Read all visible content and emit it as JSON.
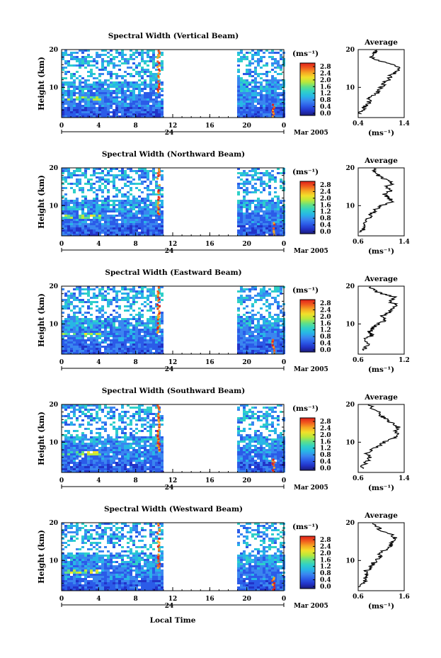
{
  "figure": {
    "x_axis_label": "Local Time",
    "date_label": "Mar 2005",
    "day_label": "24",
    "x_ticks": [
      "0",
      "4",
      "8",
      "12",
      "16",
      "20",
      "0"
    ],
    "y_axis_label": "Height (km)",
    "y_ticks": [
      "20",
      "10"
    ],
    "colorbar_unit": "(ms⁻¹)",
    "colorbar_ticks": [
      "2.8",
      "2.4",
      "2.0",
      "1.6",
      "1.2",
      "0.8",
      "0.4",
      "0.0"
    ],
    "average_title": "Average",
    "average_unit": "(ms⁻¹)"
  },
  "chart_data": [
    {
      "type": "heatmap",
      "title": "Spectral Width (Vertical Beam)",
      "xlabel": "Local Time",
      "ylabel": "Height (km)",
      "xlim": [
        0,
        24
      ],
      "ylim": [
        2,
        20
      ],
      "data_gap_hours": [
        11.2,
        18.8
      ],
      "colorbar_range": [
        0.0,
        3.0
      ],
      "average_profile": {
        "xlabel": "(ms⁻¹)",
        "x_ticks": [
          "0.4",
          "1.4"
        ],
        "xlim": [
          0.4,
          1.4
        ],
        "heights_km": [
          3,
          4,
          5,
          6,
          7,
          8,
          9,
          10,
          11,
          12,
          13,
          14,
          15,
          16,
          17,
          18,
          19,
          20
        ],
        "values": [
          0.45,
          0.5,
          0.55,
          0.65,
          0.6,
          0.75,
          0.85,
          0.9,
          0.95,
          1.05,
          1.1,
          1.2,
          1.3,
          1.15,
          0.85,
          0.7,
          0.75,
          0.8
        ]
      }
    },
    {
      "type": "heatmap",
      "title": "Spectral Width (Northward Beam)",
      "xlabel": "Local Time",
      "ylabel": "Height (km)",
      "xlim": [
        0,
        24
      ],
      "ylim": [
        2,
        20
      ],
      "data_gap_hours": [
        11.2,
        18.8
      ],
      "colorbar_range": [
        0.0,
        3.0
      ],
      "average_profile": {
        "xlabel": "(ms⁻¹)",
        "x_ticks": [
          "0.6",
          "1.4"
        ],
        "xlim": [
          0.6,
          1.4
        ],
        "heights_km": [
          3,
          4,
          5,
          6,
          7,
          8,
          9,
          10,
          11,
          12,
          13,
          14,
          15,
          16,
          17,
          18,
          19,
          20
        ],
        "values": [
          0.65,
          0.7,
          0.75,
          0.7,
          0.8,
          0.85,
          0.9,
          1.0,
          1.2,
          1.15,
          1.05,
          1.15,
          1.1,
          1.2,
          1.05,
          0.95,
          0.9,
          0.85
        ]
      }
    },
    {
      "type": "heatmap",
      "title": "Spectral Width (Eastward Beam)",
      "xlabel": "Local Time",
      "ylabel": "Height (km)",
      "xlim": [
        0,
        24
      ],
      "ylim": [
        2,
        20
      ],
      "data_gap_hours": [
        11.2,
        18.8
      ],
      "colorbar_range": [
        0.0,
        3.0
      ],
      "average_profile": {
        "xlabel": "(ms⁻¹)",
        "x_ticks": [
          "0.6",
          "1.2"
        ],
        "xlim": [
          0.6,
          1.2
        ],
        "heights_km": [
          3,
          4,
          5,
          6,
          7,
          8,
          9,
          10,
          11,
          12,
          13,
          14,
          15,
          16,
          17,
          18,
          19,
          20
        ],
        "values": [
          0.65,
          0.7,
          0.72,
          0.7,
          0.78,
          0.75,
          0.8,
          0.85,
          0.95,
          0.9,
          1.0,
          1.05,
          1.1,
          1.0,
          1.1,
          0.9,
          0.8,
          0.75
        ]
      }
    },
    {
      "type": "heatmap",
      "title": "Spectral Width (Southward Beam)",
      "xlabel": "Local Time",
      "ylabel": "Height (km)",
      "xlim": [
        0,
        24
      ],
      "ylim": [
        2,
        20
      ],
      "data_gap_hours": [
        11.2,
        18.8
      ],
      "colorbar_range": [
        0.0,
        3.0
      ],
      "average_profile": {
        "xlabel": "(ms⁻¹)",
        "x_ticks": [
          "0.6",
          "1.4"
        ],
        "xlim": [
          0.6,
          1.4
        ],
        "heights_km": [
          3,
          4,
          5,
          6,
          7,
          8,
          9,
          10,
          11,
          12,
          13,
          14,
          15,
          16,
          17,
          18,
          19,
          20
        ],
        "values": [
          0.65,
          0.7,
          0.75,
          0.8,
          0.75,
          0.85,
          0.95,
          1.05,
          1.2,
          1.3,
          1.25,
          1.3,
          1.2,
          1.1,
          1.0,
          0.95,
          0.85,
          0.8
        ]
      }
    },
    {
      "type": "heatmap",
      "title": "Spectral Width (Westward Beam)",
      "xlabel": "Local Time",
      "ylabel": "Height (km)",
      "xlim": [
        0,
        24
      ],
      "ylim": [
        2,
        20
      ],
      "data_gap_hours": [
        11.2,
        18.8
      ],
      "colorbar_range": [
        0.0,
        3.0
      ],
      "average_profile": {
        "xlabel": "(ms⁻¹)",
        "x_ticks": [
          "0.6",
          "1.6"
        ],
        "xlim": [
          0.6,
          1.6
        ],
        "heights_km": [
          3,
          4,
          5,
          6,
          7,
          8,
          9,
          10,
          11,
          12,
          13,
          14,
          15,
          16,
          17,
          18,
          19,
          20
        ],
        "values": [
          0.65,
          0.7,
          0.75,
          0.8,
          0.75,
          0.85,
          0.9,
          1.0,
          1.05,
          1.1,
          1.2,
          1.3,
          1.35,
          1.4,
          1.3,
          1.1,
          1.0,
          0.9
        ]
      }
    }
  ],
  "colors": {
    "colormap": [
      "#1b1b7a",
      "#2233c8",
      "#2b5be8",
      "#3a86f0",
      "#28b6e6",
      "#2fd0c8",
      "#5de08a",
      "#b8e83c",
      "#f2e02a",
      "#f6a623",
      "#f05a1e",
      "#e0201a"
    ],
    "axis": "#000000",
    "background": "#ffffff"
  }
}
